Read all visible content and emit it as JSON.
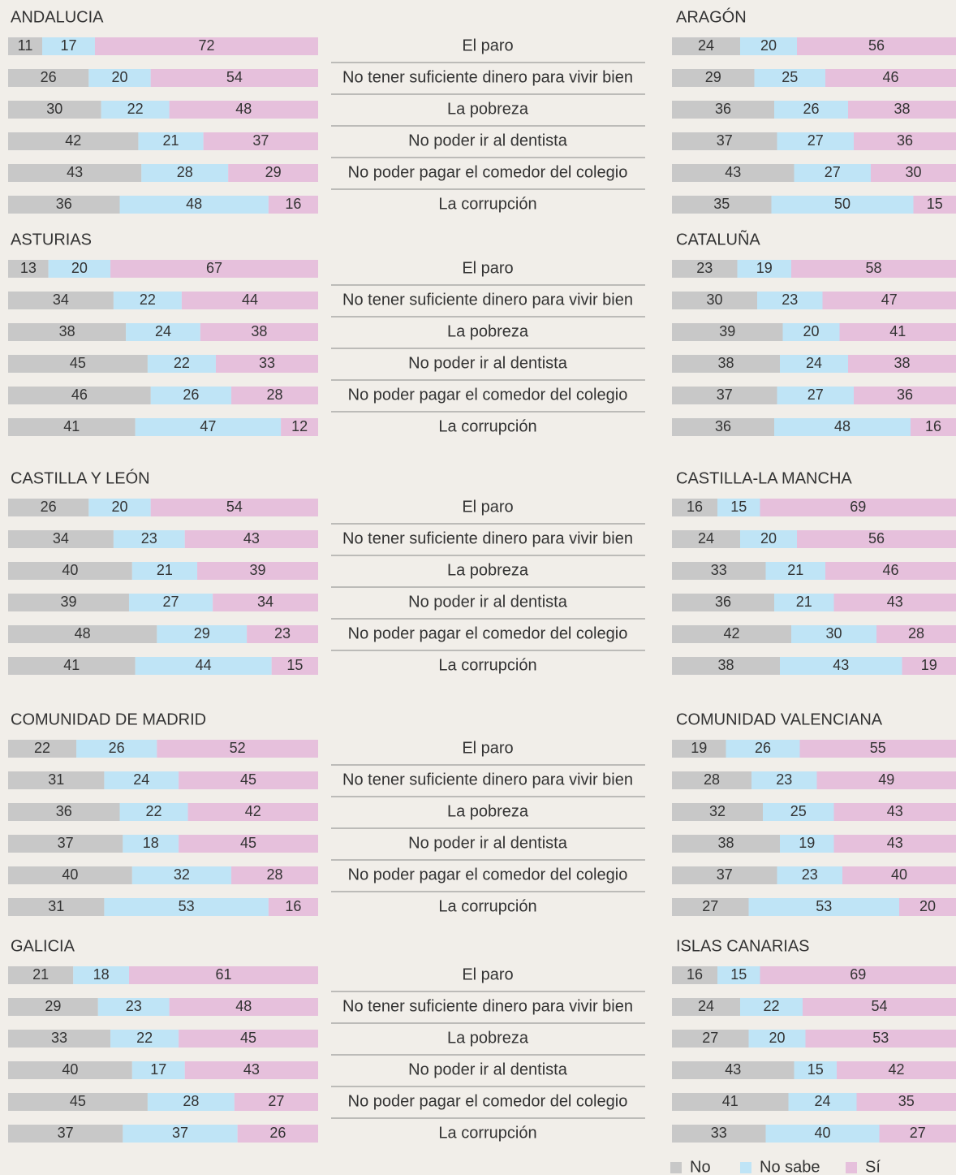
{
  "legend": [
    {
      "name": "No",
      "color": "#c8c8c8"
    },
    {
      "name": "No sabe",
      "color": "#bfe4f6"
    },
    {
      "name": "Sí",
      "color": "#e6c0dc"
    }
  ],
  "chart_data": [
    {
      "type": "bar",
      "categories": [
        "El paro",
        "No tener suficiente dinero para vivir bien",
        "La pobreza",
        "No poder ir al dentista",
        "No poder pagar el comedor del colegio",
        "La corrupción"
      ],
      "panels": [
        {
          "title": "ANDALUCIA",
          "series": [
            {
              "values": [
                11,
                26,
                30,
                42,
                43,
                36
              ]
            },
            {
              "values": [
                17,
                20,
                22,
                21,
                28,
                48
              ]
            },
            {
              "values": [
                72,
                54,
                48,
                37,
                29,
                16
              ]
            }
          ]
        },
        {
          "title": "ARAGÓN",
          "series": [
            {
              "values": [
                24,
                29,
                36,
                37,
                43,
                35
              ]
            },
            {
              "values": [
                20,
                25,
                26,
                27,
                27,
                50
              ]
            },
            {
              "values": [
                56,
                46,
                38,
                36,
                30,
                15
              ]
            }
          ]
        }
      ]
    },
    {
      "type": "bar",
      "categories": [
        "El paro",
        "No tener suficiente dinero para vivir bien",
        "La pobreza",
        "No poder ir al dentista",
        "No poder pagar el comedor del colegio",
        "La corrupción"
      ],
      "panels": [
        {
          "title": "ASTURIAS",
          "series": [
            {
              "values": [
                13,
                34,
                38,
                45,
                46,
                41
              ]
            },
            {
              "values": [
                20,
                22,
                24,
                22,
                26,
                47
              ]
            },
            {
              "values": [
                67,
                44,
                38,
                33,
                28,
                12
              ]
            }
          ]
        },
        {
          "title": "CATALUÑA",
          "series": [
            {
              "values": [
                23,
                30,
                39,
                38,
                37,
                36
              ]
            },
            {
              "values": [
                19,
                23,
                20,
                24,
                27,
                48
              ]
            },
            {
              "values": [
                58,
                47,
                41,
                38,
                36,
                16
              ]
            }
          ]
        }
      ]
    },
    {
      "type": "bar",
      "categories": [
        "El paro",
        "No tener suficiente dinero para vivir bien",
        "La pobreza",
        "No poder ir al dentista",
        "No poder pagar el comedor del colegio",
        "La corrupción"
      ],
      "panels": [
        {
          "title": "CASTILLA Y LEÓN",
          "series": [
            {
              "values": [
                26,
                34,
                40,
                39,
                48,
                41
              ]
            },
            {
              "values": [
                20,
                23,
                21,
                27,
                29,
                44
              ]
            },
            {
              "values": [
                54,
                43,
                39,
                34,
                23,
                15
              ]
            }
          ]
        },
        {
          "title": "CASTILLA-LA MANCHA",
          "series": [
            {
              "values": [
                16,
                24,
                33,
                36,
                42,
                38
              ]
            },
            {
              "values": [
                15,
                20,
                21,
                21,
                30,
                43
              ]
            },
            {
              "values": [
                69,
                56,
                46,
                43,
                28,
                19
              ]
            }
          ]
        }
      ]
    },
    {
      "type": "bar",
      "categories": [
        "El paro",
        "No tener suficiente dinero para vivir bien",
        "La pobreza",
        "No poder ir al dentista",
        "No poder pagar el comedor del colegio",
        "La corrupción"
      ],
      "panels": [
        {
          "title": "COMUNIDAD DE MADRID",
          "series": [
            {
              "values": [
                22,
                31,
                36,
                37,
                40,
                31
              ]
            },
            {
              "values": [
                26,
                24,
                22,
                18,
                32,
                53
              ]
            },
            {
              "values": [
                52,
                45,
                42,
                45,
                28,
                16
              ]
            }
          ]
        },
        {
          "title": "COMUNIDAD VALENCIANA",
          "series": [
            {
              "values": [
                19,
                28,
                32,
                38,
                37,
                27
              ]
            },
            {
              "values": [
                26,
                23,
                25,
                19,
                23,
                53
              ]
            },
            {
              "values": [
                55,
                49,
                43,
                43,
                40,
                20
              ]
            }
          ]
        }
      ]
    },
    {
      "type": "bar",
      "categories": [
        "El paro",
        "No tener suficiente dinero para vivir bien",
        "La pobreza",
        "No poder ir al dentista",
        "No poder pagar el comedor del colegio",
        "La corrupción"
      ],
      "panels": [
        {
          "title": "GALICIA",
          "series": [
            {
              "values": [
                21,
                29,
                33,
                40,
                45,
                37
              ]
            },
            {
              "values": [
                18,
                23,
                22,
                17,
                28,
                37
              ]
            },
            {
              "values": [
                61,
                48,
                45,
                43,
                27,
                26
              ]
            }
          ]
        },
        {
          "title": "ISLAS CANARIAS",
          "series": [
            {
              "values": [
                16,
                24,
                27,
                43,
                41,
                33
              ]
            },
            {
              "values": [
                15,
                22,
                20,
                15,
                24,
                40
              ]
            },
            {
              "values": [
                69,
                54,
                53,
                42,
                35,
                27
              ]
            }
          ]
        }
      ]
    }
  ]
}
